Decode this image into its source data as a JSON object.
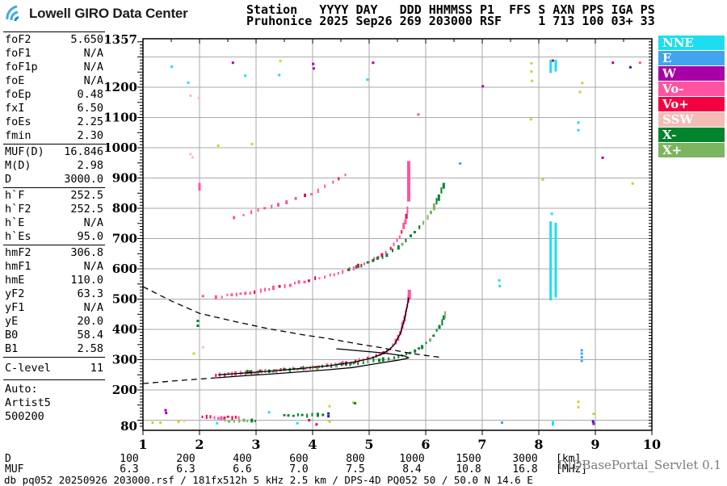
{
  "header": {
    "brand": "Lowell GIRO Data Center",
    "station_line1": "Station   YYYY DAY   DDD HHMMSS P1  FFS S AXN PPS IGA PS",
    "station_line2": "Pruhonice 2025 Sep26 269 203000 RSF     1 713 100 03+ 33"
  },
  "readout": {
    "groups": [
      [
        {
          "label": "foF2",
          "value": "5.650"
        },
        {
          "label": "foF1",
          "value": "N/A"
        },
        {
          "label": "foF1p",
          "value": "N/A"
        },
        {
          "label": "foE",
          "value": "N/A"
        },
        {
          "label": "foEp",
          "value": "0.48"
        },
        {
          "label": "fxI",
          "value": "6.50"
        },
        {
          "label": "foEs",
          "value": "2.25"
        },
        {
          "label": "fmin",
          "value": "2.30"
        }
      ],
      [
        {
          "label": "MUF(D)",
          "value": "16.846"
        },
        {
          "label": "M(D)",
          "value": "2.98"
        },
        {
          "label": "D",
          "value": "3000.0"
        }
      ],
      [
        {
          "label": "h`F",
          "value": "252.5"
        },
        {
          "label": "h`F2",
          "value": "252.5"
        },
        {
          "label": "h`E",
          "value": "N/A"
        },
        {
          "label": "h`Es",
          "value": "95.0"
        }
      ],
      [
        {
          "label": "hmF2",
          "value": "306.8"
        },
        {
          "label": "hmF1",
          "value": "N/A"
        },
        {
          "label": "hmE",
          "value": "110.0"
        },
        {
          "label": "yF2",
          "value": "63.3"
        },
        {
          "label": "yF1",
          "value": "N/A"
        },
        {
          "label": "yE",
          "value": "20.0"
        },
        {
          "label": "B0",
          "value": "58.4"
        },
        {
          "label": "B1",
          "value": "2.58"
        }
      ]
    ],
    "c_level": {
      "label": "C-level",
      "value": "11"
    },
    "auto_lines": [
      "Auto:",
      "Artist5",
      "500200"
    ]
  },
  "legend": {
    "items": [
      {
        "label": "NNE",
        "color": "#1EDDEF"
      },
      {
        "label": "E",
        "color": "#42A4EE"
      },
      {
        "label": "W",
        "color": "#A800A8"
      },
      {
        "label": "Vo-",
        "color": "#FF54A0"
      },
      {
        "label": "Vo+",
        "color": "#F40040"
      },
      {
        "label": "SSW",
        "color": "#F4BCB4"
      },
      {
        "label": "X-",
        "color": "#00832D"
      },
      {
        "label": "X+",
        "color": "#7CB55F"
      }
    ]
  },
  "footer": {
    "d_row": {
      "label": "D",
      "values": [
        "100",
        "200",
        "400",
        "600",
        "800",
        "1000",
        "1500",
        "3000"
      ],
      "unit": "[km]"
    },
    "muf_row": {
      "label": "MUF",
      "values": [
        "6.3",
        "6.3",
        "6.6",
        "7.0",
        "7.5",
        "8.4",
        "10.8",
        "16.8"
      ],
      "unit": "[MHz]"
    },
    "status_line": "db pq052 20250926 203000.rsf / 181fx512h 5 kHz 2.5 km / DPS-4D PQ052 50 / 50.0 N 14.6 E",
    "servlet_label": "DIDBasePortal_Servlet 0.1"
  },
  "chart_data": {
    "type": "scatter",
    "xlabel": "[MHz]",
    "ylabel": "[km]",
    "xlim": [
      1,
      10
    ],
    "ylim": [
      80,
      1357
    ],
    "grid": "on",
    "legend_position": "top-right",
    "x_ticks": [
      1,
      2,
      3,
      4,
      5,
      6,
      7,
      8,
      9,
      10
    ],
    "y_ticks": [
      1357,
      1200,
      1100,
      1000,
      900,
      800,
      700,
      600,
      500,
      400,
      300,
      200,
      80
    ],
    "colors": {
      "nne": "#1EDDEF",
      "e": "#42A4EE",
      "w": "#A800A8",
      "vo_minus": "#FF54A0",
      "vo_plus": "#F40040",
      "ssw": "#F4BCB4",
      "x_minus": "#00832D",
      "x_plus": "#7CB55F",
      "yellow": "#CFCF2A",
      "navy": "#2222BB"
    },
    "traces": [
      {
        "name": "F-1hop-O",
        "colors": [
          "vo_minus",
          "vo_plus"
        ],
        "step": 4,
        "points": [
          [
            2.29,
            248
          ],
          [
            2.8,
            256
          ],
          [
            3.3,
            263
          ],
          [
            3.8,
            271
          ],
          [
            4.3,
            280
          ],
          [
            4.7,
            291
          ],
          [
            5.0,
            304
          ],
          [
            5.2,
            317
          ],
          [
            5.35,
            333
          ],
          [
            5.45,
            352
          ],
          [
            5.55,
            387
          ],
          [
            5.62,
            432
          ],
          [
            5.67,
            475
          ],
          [
            5.71,
            515
          ]
        ]
      },
      {
        "name": "F-1hop-X",
        "colors": [
          "x_minus",
          "x_plus"
        ],
        "step": 4.5,
        "points": [
          [
            2.75,
            256
          ],
          [
            3.2,
            262
          ],
          [
            3.7,
            269
          ],
          [
            4.2,
            277
          ],
          [
            4.7,
            287
          ],
          [
            5.1,
            297
          ],
          [
            5.47,
            307
          ],
          [
            5.76,
            325
          ],
          [
            5.97,
            347
          ],
          [
            6.11,
            373
          ],
          [
            6.23,
            405
          ],
          [
            6.31,
            432
          ],
          [
            6.36,
            458
          ]
        ]
      },
      {
        "name": "F-2hop-O",
        "colors": [
          "vo_minus",
          "vo_plus"
        ],
        "step": 5,
        "points": [
          [
            2.29,
            507
          ],
          [
            2.76,
            517
          ],
          [
            3.33,
            536
          ],
          [
            3.9,
            560
          ],
          [
            4.47,
            587
          ],
          [
            4.9,
            613
          ],
          [
            5.19,
            640
          ],
          [
            5.4,
            672
          ],
          [
            5.54,
            707
          ],
          [
            5.64,
            755
          ],
          [
            5.69,
            810
          ]
        ]
      },
      {
        "name": "F-2hop-X",
        "colors": [
          "x_minus",
          "x_plus"
        ],
        "step": 5.5,
        "points": [
          [
            4.65,
            600
          ],
          [
            5.0,
            621
          ],
          [
            5.33,
            648
          ],
          [
            5.54,
            675
          ],
          [
            5.69,
            701
          ],
          [
            5.83,
            728
          ],
          [
            6.01,
            763
          ],
          [
            6.16,
            808
          ],
          [
            6.26,
            848
          ],
          [
            6.33,
            882
          ]
        ]
      },
      {
        "name": "F-3hop-O",
        "colors": [
          "vo_minus",
          "vo_plus"
        ],
        "step": 8,
        "points": [
          [
            2.61,
            768
          ],
          [
            2.9,
            784
          ],
          [
            3.19,
            800
          ],
          [
            3.47,
            816
          ],
          [
            3.76,
            835
          ],
          [
            4.04,
            853
          ],
          [
            4.26,
            875
          ],
          [
            4.47,
            901
          ],
          [
            4.69,
            918
          ]
        ]
      },
      {
        "name": "Es-O",
        "colors": [
          "vo_plus",
          "vo_minus"
        ],
        "step": 3.5,
        "points": [
          [
            2.05,
            109
          ],
          [
            2.74,
            109
          ]
        ]
      },
      {
        "name": "Es-X-low",
        "colors": [
          "x_plus",
          "x_minus"
        ],
        "step": 4,
        "points": [
          [
            2.45,
            98
          ],
          [
            3.0,
            98
          ]
        ]
      },
      {
        "name": "Es-X-high",
        "colors": [
          "x_minus",
          "x_plus"
        ],
        "step": 4.5,
        "points": [
          [
            3.5,
            117
          ],
          [
            4.2,
            117
          ]
        ]
      }
    ],
    "columns": [
      {
        "f": 5.7,
        "from": 822,
        "to": 956,
        "w": 4,
        "color": "vo_minus"
      },
      {
        "f": 5.71,
        "from": 500,
        "to": 531,
        "w": 4,
        "color": "vo_minus"
      },
      {
        "f": 2.0,
        "from": 858,
        "to": 884,
        "w": 3,
        "color": "vo_minus"
      },
      {
        "f": 8.21,
        "from": 496,
        "to": 757,
        "w": 3,
        "color": "nne"
      },
      {
        "f": 8.3,
        "from": 505,
        "to": 752,
        "w": 3,
        "color": "nne"
      },
      {
        "f": 8.21,
        "from": 1247,
        "to": 1291,
        "w": 3,
        "color": "nne"
      },
      {
        "f": 8.3,
        "from": 1252,
        "to": 1291,
        "w": 3,
        "color": "nne"
      },
      {
        "f": 8.25,
        "from": 1284,
        "to": 1292,
        "w": 3,
        "color": "w"
      },
      {
        "f": 8.25,
        "from": 82,
        "to": 97,
        "w": 3,
        "color": "nne"
      }
    ],
    "noise": [
      [
        1.51,
        1268,
        "nne"
      ],
      [
        1.8,
        1215,
        "nne"
      ],
      [
        2.81,
        1238,
        "nne"
      ],
      [
        3.41,
        1240,
        "nne"
      ],
      [
        4.97,
        1225,
        "nne"
      ],
      [
        2.59,
        1281,
        "w"
      ],
      [
        4.01,
        1277,
        "w"
      ],
      [
        4.02,
        1262,
        "w"
      ],
      [
        5.07,
        1281,
        "w"
      ],
      [
        7.01,
        1203,
        "w"
      ],
      [
        9.13,
        967,
        "w"
      ],
      [
        9.31,
        1281,
        "w"
      ],
      [
        3.43,
        1287,
        "yellow"
      ],
      [
        7.87,
        1279,
        "yellow"
      ],
      [
        7.87,
        1252,
        "yellow"
      ],
      [
        7.88,
        1221,
        "yellow"
      ],
      [
        8.77,
        1214,
        "yellow"
      ],
      [
        8.73,
        1184,
        "yellow"
      ],
      [
        7.86,
        1094,
        "yellow"
      ],
      [
        8.07,
        895,
        "yellow"
      ],
      [
        9.66,
        882,
        "yellow"
      ],
      [
        2.93,
        1012,
        "yellow"
      ],
      [
        2.33,
        1007,
        "yellow"
      ],
      [
        1.9,
        320,
        "yellow"
      ],
      [
        8.7,
        161,
        "yellow"
      ],
      [
        8.7,
        143,
        "yellow"
      ],
      [
        8.97,
        121,
        "yellow"
      ],
      [
        4.3,
        146,
        "yellow"
      ],
      [
        4.72,
        158,
        "yellow"
      ],
      [
        1.17,
        92,
        "yellow"
      ],
      [
        1.31,
        92,
        "yellow"
      ],
      [
        1.63,
        94,
        "yellow"
      ],
      [
        4.3,
        95,
        "yellow"
      ],
      [
        9.62,
        1266,
        "navy"
      ],
      [
        6.61,
        948,
        "e"
      ],
      [
        8.96,
        96,
        "navy"
      ],
      [
        8.97,
        88,
        "w"
      ],
      [
        4.28,
        122,
        "navy"
      ],
      [
        4.28,
        113,
        "navy"
      ],
      [
        7.35,
        92,
        "e"
      ],
      [
        1.84,
        1172,
        "ssw"
      ],
      [
        1.99,
        1164,
        "ssw"
      ],
      [
        1.84,
        979,
        "ssw"
      ],
      [
        1.88,
        968,
        "ssw"
      ],
      [
        2.06,
        341,
        "ssw"
      ],
      [
        1.73,
        98,
        "ssw"
      ],
      [
        1.97,
        428,
        "x_minus"
      ],
      [
        1.97,
        412,
        "x_minus"
      ],
      [
        4.75,
        156,
        "x_minus"
      ],
      [
        5.87,
        1110,
        "vo_minus"
      ],
      [
        9.79,
        1281,
        "vo_minus"
      ],
      [
        2.06,
        510,
        "vo_minus"
      ],
      [
        3.94,
        100,
        "vo_plus"
      ],
      [
        4.07,
        86,
        "vo_plus"
      ],
      [
        2.31,
        90,
        "nne"
      ],
      [
        3.23,
        126,
        "nne"
      ],
      [
        3.73,
        90,
        "nne"
      ],
      [
        8.7,
        1083,
        "nne"
      ],
      [
        8.7,
        1058,
        "nne"
      ],
      [
        8.23,
        782,
        "nne"
      ],
      [
        7.3,
        562,
        "nne"
      ],
      [
        7.31,
        543,
        "nne"
      ],
      [
        8.76,
        296,
        "e"
      ],
      [
        8.76,
        308,
        "e"
      ],
      [
        8.76,
        320,
        "e"
      ],
      [
        8.76,
        331,
        "e"
      ],
      [
        1.4,
        133,
        "w"
      ],
      [
        1.41,
        124,
        "w"
      ]
    ],
    "curves": [
      {
        "name": "muf-transmission",
        "style": "dashed",
        "points": [
          [
            1.0,
            541
          ],
          [
            1.5,
            494
          ],
          [
            2.0,
            453
          ],
          [
            2.6,
            427
          ],
          [
            3.2,
            403
          ],
          [
            3.8,
            383
          ],
          [
            4.3,
            369
          ],
          [
            4.8,
            352
          ],
          [
            5.2,
            340
          ],
          [
            5.7,
            322
          ],
          [
            6.0,
            314
          ],
          [
            6.3,
            307
          ]
        ]
      },
      {
        "name": "profile-extrapolated",
        "style": "dashed",
        "points": [
          [
            1.0,
            221
          ],
          [
            1.5,
            229
          ],
          [
            2.0,
            236
          ],
          [
            2.3,
            240
          ]
        ]
      },
      {
        "name": "true-height-profile",
        "style": "solid",
        "points": [
          [
            2.3,
            240
          ],
          [
            2.8,
            247
          ],
          [
            3.3,
            253
          ],
          [
            3.8,
            260
          ],
          [
            4.3,
            267
          ],
          [
            4.7,
            274
          ],
          [
            5.0,
            283
          ],
          [
            5.3,
            292
          ],
          [
            5.5,
            298
          ],
          [
            5.64,
            303
          ],
          [
            5.7,
            306
          ],
          [
            5.63,
            312
          ],
          [
            5.45,
            317
          ],
          [
            5.2,
            323
          ],
          [
            4.9,
            328
          ],
          [
            4.6,
            333
          ],
          [
            4.42,
            336
          ]
        ]
      },
      {
        "name": "trace-fit",
        "style": "solid",
        "points": [
          [
            2.33,
            250
          ],
          [
            2.8,
            256
          ],
          [
            3.3,
            263
          ],
          [
            3.8,
            271
          ],
          [
            4.3,
            280
          ],
          [
            4.7,
            291
          ],
          [
            5.0,
            303
          ],
          [
            5.2,
            316
          ],
          [
            5.35,
            332
          ],
          [
            5.45,
            351
          ],
          [
            5.55,
            386
          ],
          [
            5.62,
            430
          ],
          [
            5.67,
            472
          ],
          [
            5.7,
            505
          ]
        ]
      }
    ]
  }
}
